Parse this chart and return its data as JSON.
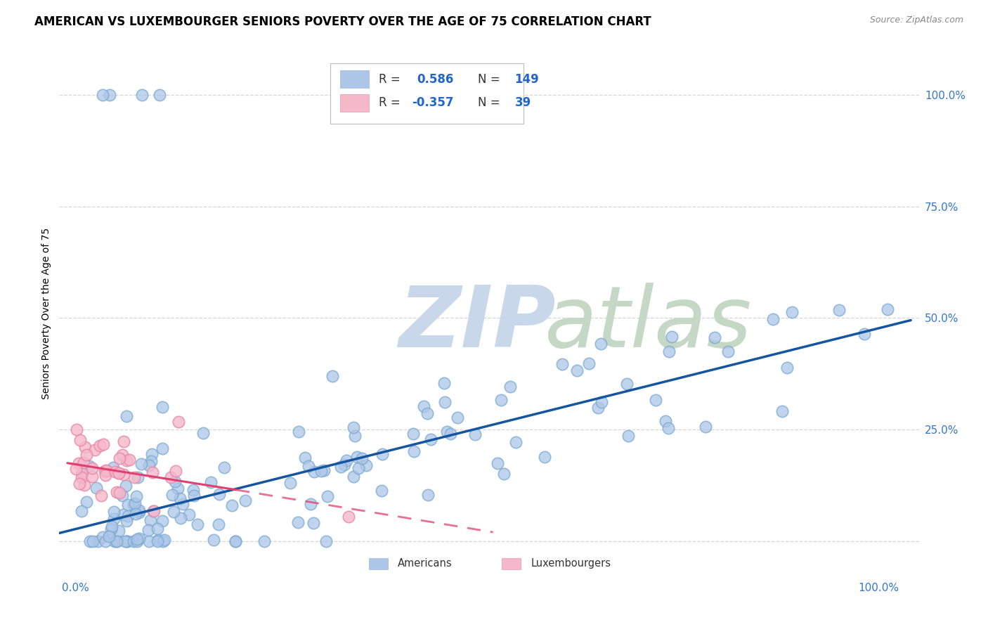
{
  "title": "AMERICAN VS LUXEMBOURGER SENIORS POVERTY OVER THE AGE OF 75 CORRELATION CHART",
  "source": "Source: ZipAtlas.com",
  "ylabel": "Seniors Poverty Over the Age of 75",
  "xlim": [
    -0.02,
    1.05
  ],
  "ylim": [
    -0.08,
    1.1
  ],
  "xticks": [
    0.0,
    0.25,
    0.5,
    0.75,
    1.0
  ],
  "xticklabels": [
    "0.0%",
    "",
    "",
    "",
    "100.0%"
  ],
  "ytick_positions": [
    0.0,
    0.25,
    0.5,
    0.75,
    1.0
  ],
  "yticklabels": [
    "",
    "25.0%",
    "50.0%",
    "75.0%",
    "100.0%"
  ],
  "R_american": 0.586,
  "N_american": 149,
  "R_luxembourger": -0.357,
  "N_luxembourger": 39,
  "american_color": "#adc6e8",
  "american_edge_color": "#7aaad0",
  "luxembourger_color": "#f5b8cb",
  "luxembourger_edge_color": "#e888a8",
  "american_line_color": "#1655a0",
  "luxembourger_line_color": "#e04070",
  "grid_color": "#cccccc",
  "background_color": "#ffffff",
  "title_fontsize": 12,
  "label_fontsize": 10,
  "tick_fontsize": 11,
  "tick_color": "#3377cc",
  "american_line_y0": 0.018,
  "american_line_y1": 0.495,
  "luxembourger_line_y0": 0.175,
  "luxembourger_line_solid_end_x": 0.2,
  "luxembourger_line_solid_end_y": 0.115,
  "luxembourger_line_dash_end_x": 0.52,
  "luxembourger_line_dash_end_y": 0.02
}
